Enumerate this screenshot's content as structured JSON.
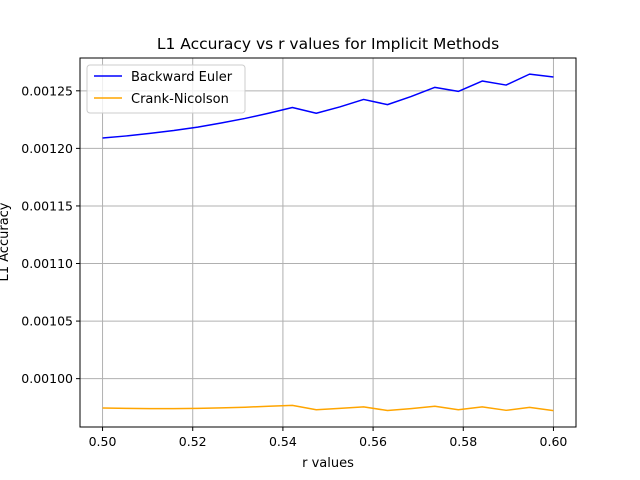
{
  "chart_data": {
    "type": "line",
    "title": "L1 Accuracy vs r values for Implicit Methods",
    "xlabel": "r values",
    "ylabel": "L1 Accuracy",
    "xlim": [
      0.495,
      0.605
    ],
    "ylim": [
      0.000958,
      0.0012785
    ],
    "xticks": [
      0.5,
      0.52,
      0.54,
      0.56,
      0.58,
      0.6
    ],
    "xtick_labels": [
      "0.50",
      "0.52",
      "0.54",
      "0.56",
      "0.58",
      "0.60"
    ],
    "yticks": [
      0.001,
      0.00105,
      0.0011,
      0.00115,
      0.0012,
      0.00125
    ],
    "ytick_labels": [
      "0.00100",
      "0.00105",
      "0.00110",
      "0.00115",
      "0.00120",
      "0.00125"
    ],
    "grid": true,
    "legend_position": "top-left",
    "series": [
      {
        "name": "Backward Euler",
        "color": "#0000ff",
        "x": [
          0.5,
          0.5053,
          0.5105,
          0.5158,
          0.5211,
          0.5263,
          0.5316,
          0.5368,
          0.5421,
          0.5474,
          0.5526,
          0.5579,
          0.5632,
          0.5684,
          0.5737,
          0.5789,
          0.5842,
          0.5895,
          0.5947,
          0.6
        ],
        "y": [
          0.001209,
          0.0012108,
          0.001213,
          0.0012155,
          0.0012185,
          0.001222,
          0.001226,
          0.0012305,
          0.0012355,
          0.0012305,
          0.001236,
          0.0012425,
          0.001238,
          0.001245,
          0.001253,
          0.0012495,
          0.0012585,
          0.001255,
          0.0012645,
          0.001262
        ]
      },
      {
        "name": "Crank-Nicolson",
        "color": "#ffa500",
        "x": [
          0.5,
          0.5053,
          0.5105,
          0.5158,
          0.5211,
          0.5263,
          0.5316,
          0.5368,
          0.5421,
          0.5474,
          0.5526,
          0.5579,
          0.5632,
          0.5684,
          0.5737,
          0.5789,
          0.5842,
          0.5895,
          0.5947,
          0.6
        ],
        "y": [
          0.0009745,
          0.0009742,
          0.000974,
          0.000974,
          0.0009742,
          0.0009746,
          0.0009752,
          0.000976,
          0.0009768,
          0.000973,
          0.0009742,
          0.0009755,
          0.0009723,
          0.000974,
          0.000976,
          0.000973,
          0.0009755,
          0.0009725,
          0.000975,
          0.0009722
        ]
      }
    ]
  }
}
